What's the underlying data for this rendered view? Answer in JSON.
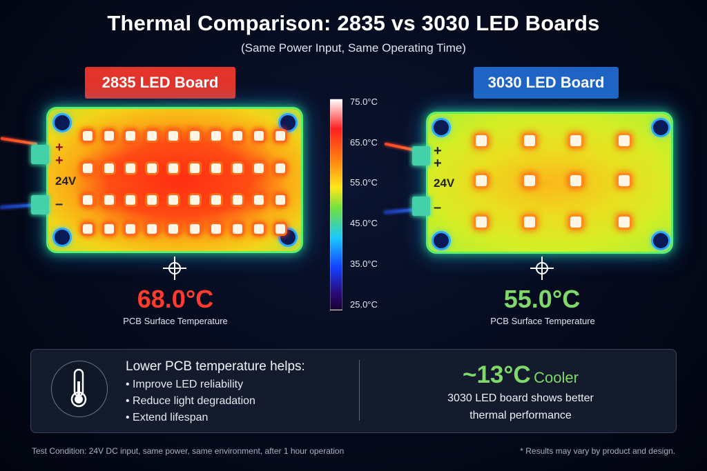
{
  "header": {
    "title": "Thermal Comparison: 2835 vs 3030 LED Boards",
    "subtitle": "(Same Power Input, Same Operating Time)"
  },
  "boards": {
    "left": {
      "label": "2835 LED Board",
      "label_color": "#e2342a",
      "plus1": "+",
      "plus2": "+",
      "voltage": "24V",
      "minus": "–",
      "temperature": "68.0°C",
      "temperature_color": "#ff3b2e",
      "caption": "PCB Surface Temperature"
    },
    "right": {
      "label": "3030 LED Board",
      "label_color": "#1f64c4",
      "plus1": "+",
      "plus2": "+",
      "voltage": "24V",
      "minus": "–",
      "temperature": "55.0°C",
      "temperature_color": "#7fd86a",
      "caption": "PCB Surface Temperature"
    }
  },
  "scale": {
    "ticks": [
      "75.0°C",
      "65.0°C",
      "55.0°C",
      "45.0°C",
      "35.0°C",
      "25.0°C"
    ]
  },
  "summary": {
    "heading": "Lower PCB temperature helps:",
    "bullets": [
      "Improve LED reliability",
      "Reduce light degradation",
      "Extend lifespan"
    ],
    "delta": "~13°C",
    "delta_word": "Cooler",
    "desc_line1": "3030 LED board shows better",
    "desc_line2": "thermal performance",
    "accent_color": "#7fd86a",
    "icon": "thermometer-icon"
  },
  "footer": {
    "left": "Test Condition: 24V DC input, same power, same environment, after 1 hour operation",
    "right": "* Results may vary by product and design."
  }
}
